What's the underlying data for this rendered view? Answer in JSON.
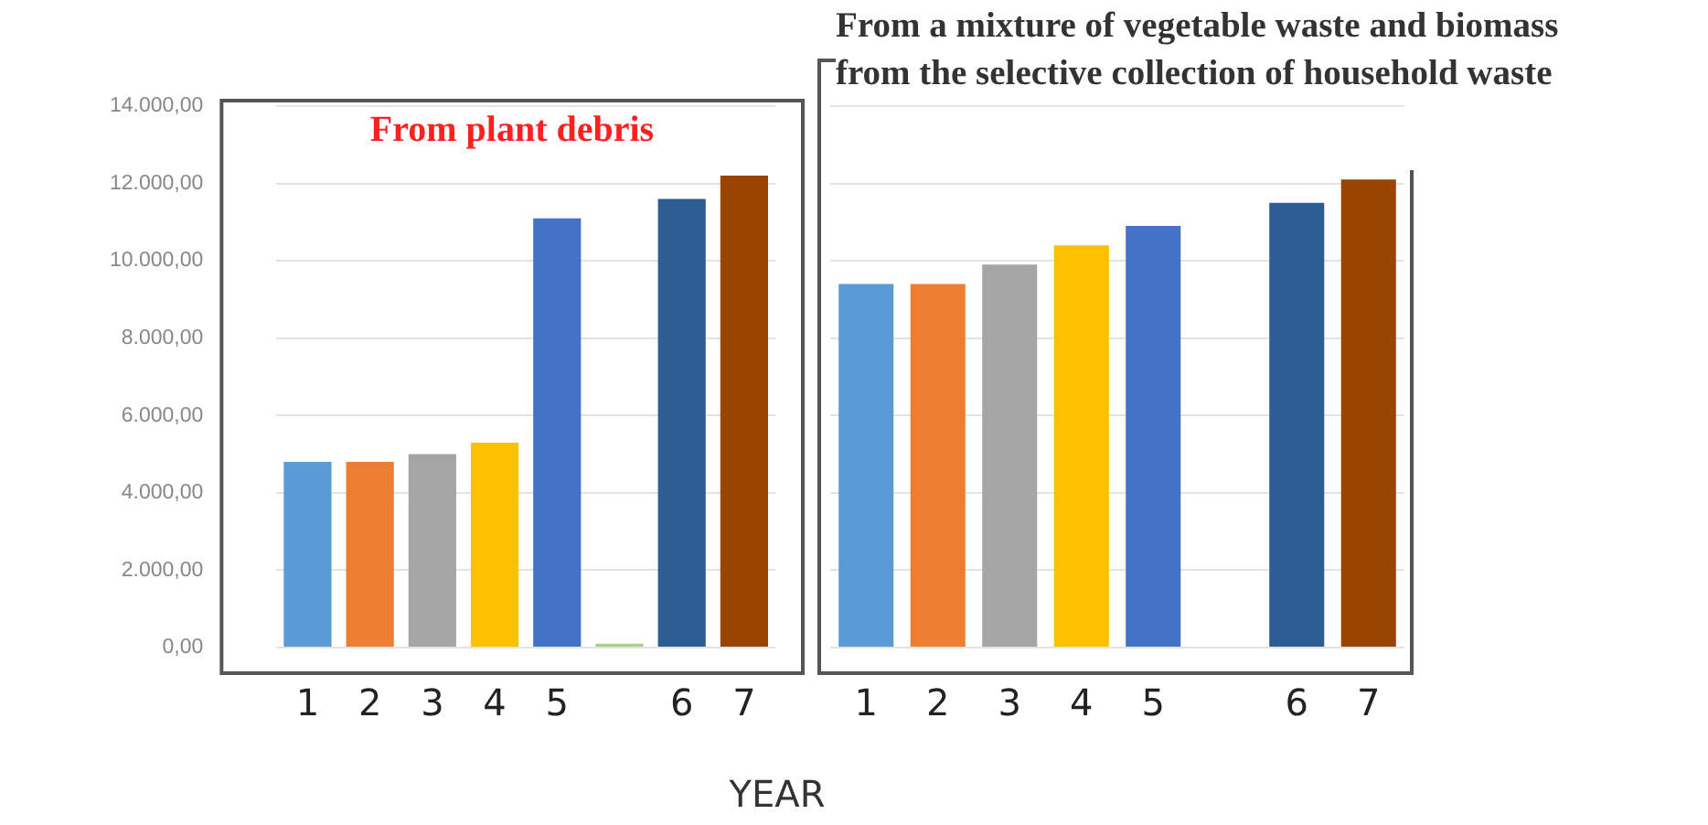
{
  "chart_data": [
    {
      "type": "bar",
      "title": "From plant debris",
      "xlabel": "YEAR",
      "categories": [
        "1",
        "2",
        "3",
        "4",
        "5",
        null,
        "6",
        "7"
      ],
      "values": [
        4800,
        4800,
        5000,
        5300,
        11100,
        100,
        11600,
        12200
      ],
      "colors": [
        "#5b9bd5",
        "#ed7d31",
        "#a5a5a5",
        "#ffc000",
        "#4472c4",
        "#a9d18e",
        "#2e5d94",
        "#994400"
      ],
      "ylim": [
        0,
        14000
      ],
      "yticks": [
        {
          "value": 0,
          "label": "0,00"
        },
        {
          "value": 2000,
          "label": "2.000,00"
        },
        {
          "value": 4000,
          "label": "4.000,00"
        },
        {
          "value": 6000,
          "label": "6.000,00"
        },
        {
          "value": 8000,
          "label": "8.000,00"
        },
        {
          "value": 10000,
          "label": "10.000,00"
        },
        {
          "value": 12000,
          "label": "12.000,00"
        },
        {
          "value": 14000,
          "label": "14.000,00"
        }
      ],
      "grid": "y"
    },
    {
      "type": "bar",
      "title": "From a mixture of vegetable waste and biomass from the selective collection of household waste",
      "categories": [
        "1",
        "2",
        "3",
        "4",
        "5",
        null,
        "6",
        "7"
      ],
      "values": [
        9400,
        9400,
        9900,
        10400,
        10900,
        null,
        11500,
        12100
      ],
      "colors": [
        "#5b9bd5",
        "#ed7d31",
        "#a5a5a5",
        "#ffc000",
        "#4472c4",
        "#a9d18e",
        "#2e5d94",
        "#994400"
      ],
      "ylim": [
        0,
        14000
      ],
      "yticks": [
        0,
        2000,
        4000,
        6000,
        8000,
        10000,
        12000,
        14000
      ],
      "grid": "y",
      "tick_labels": "x"
    }
  ]
}
